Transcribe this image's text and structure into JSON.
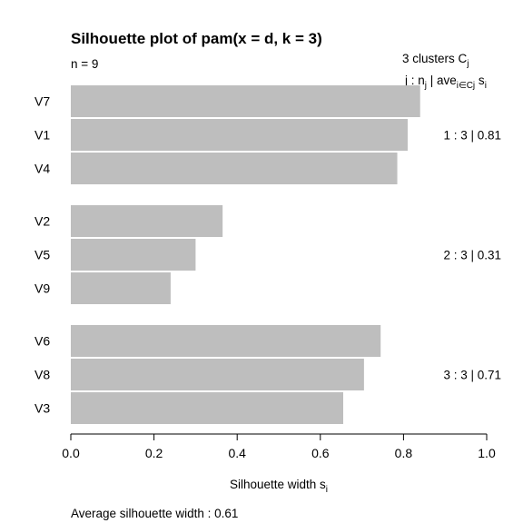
{
  "chart_data": {
    "type": "bar",
    "orientation": "horizontal",
    "title": "Silhouette plot of pam(x = d, k = 3)",
    "n_label": "n = 9",
    "legend": {
      "line1": "3  clusters  C",
      "line1_sub": "j",
      "line2_a": "j :  n",
      "line2_a_sub": "j",
      "line2_b": " | ave",
      "line2_b_sub": "i∈Cj",
      "line2_c": "  s",
      "line2_c_sub": "i"
    },
    "xlabel": "Silhouette width s",
    "xlabel_sub": "i",
    "xlim": [
      0,
      1
    ],
    "xticks": [
      "0.0",
      "0.2",
      "0.4",
      "0.6",
      "0.8",
      "1.0"
    ],
    "bar_color": "#bebebe",
    "clusters": [
      {
        "summary": "1 :   3  |  0.81",
        "items": [
          {
            "label": "V7",
            "value": 0.84
          },
          {
            "label": "V1",
            "value": 0.81
          },
          {
            "label": "V4",
            "value": 0.785
          }
        ]
      },
      {
        "summary": "2 :   3  |  0.31",
        "items": [
          {
            "label": "V2",
            "value": 0.365
          },
          {
            "label": "V5",
            "value": 0.3
          },
          {
            "label": "V9",
            "value": 0.24
          }
        ]
      },
      {
        "summary": "3 :   3  |  0.71",
        "items": [
          {
            "label": "V6",
            "value": 0.745
          },
          {
            "label": "V8",
            "value": 0.705
          },
          {
            "label": "V3",
            "value": 0.655
          }
        ]
      }
    ],
    "footer": "Average silhouette width :  0.61"
  }
}
